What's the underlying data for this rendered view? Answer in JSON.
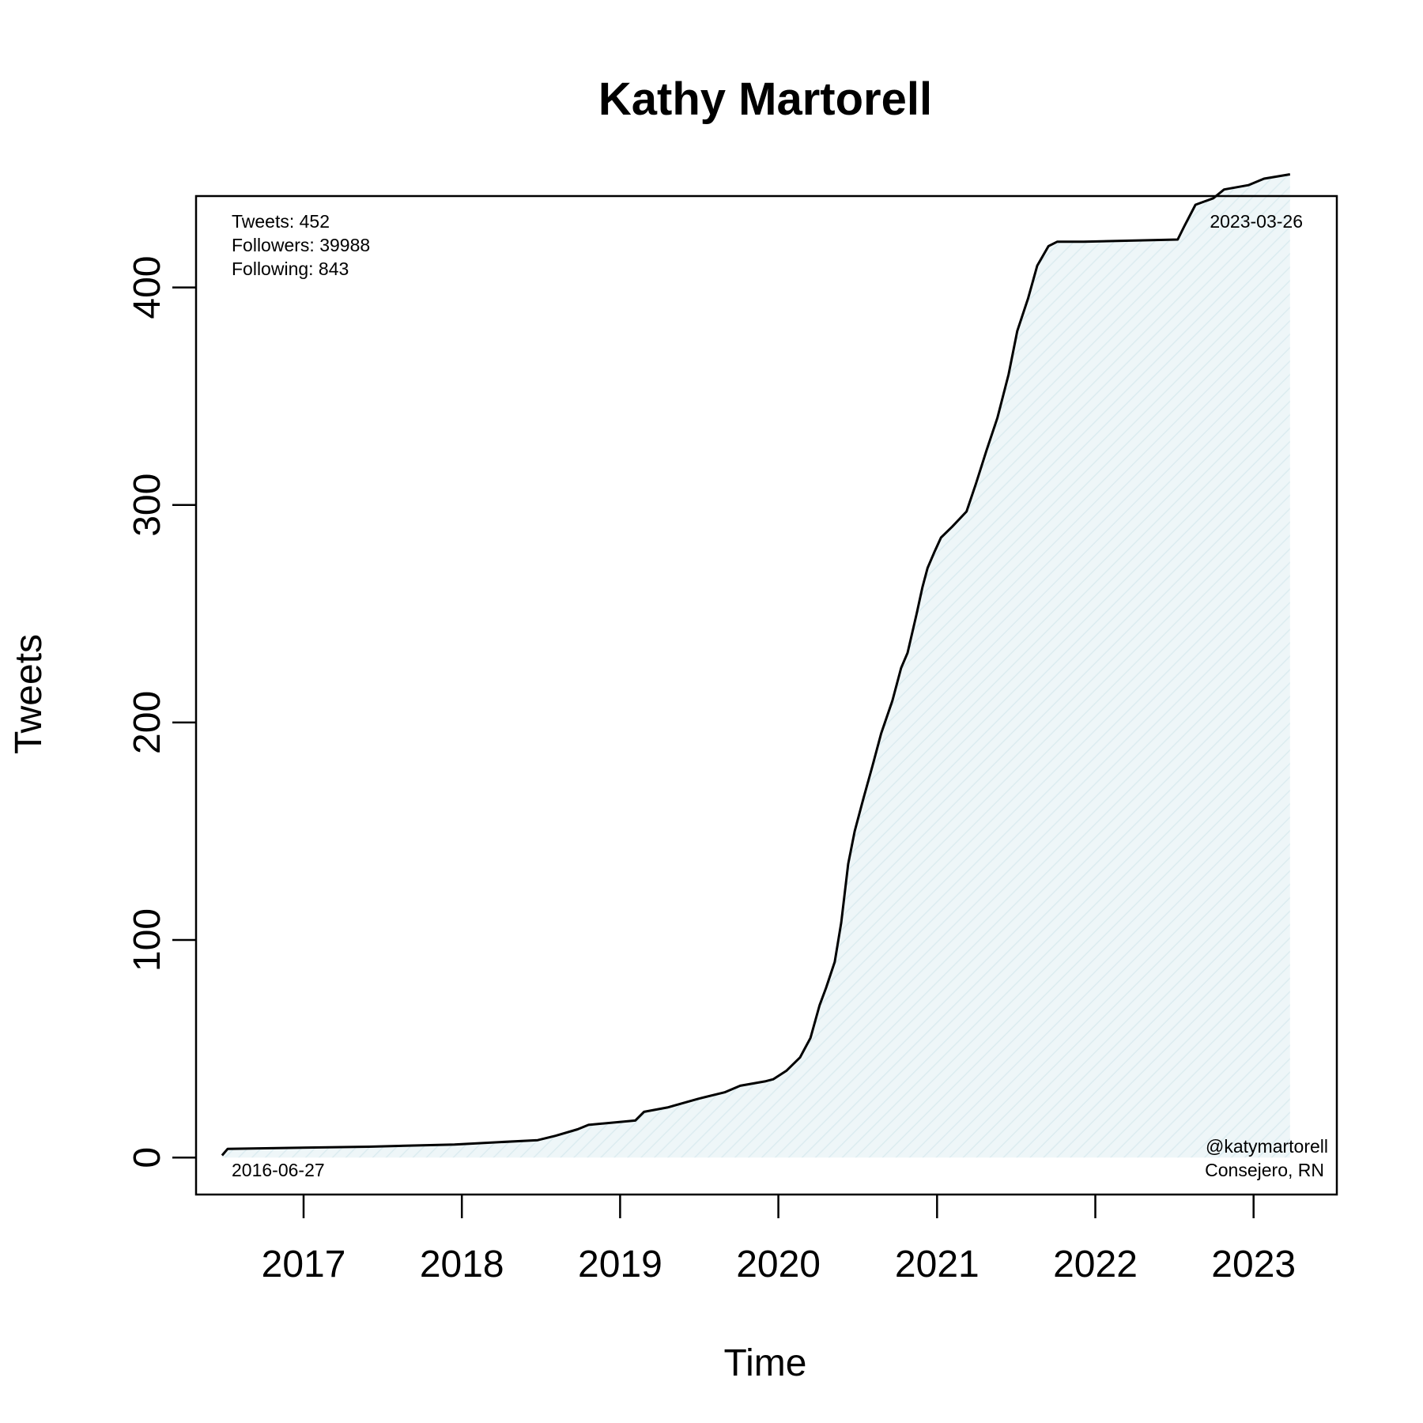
{
  "chart_data": {
    "type": "area",
    "title": "Kathy Martorell",
    "xlabel": "Time",
    "ylabel": "Tweets",
    "x_ticks": [
      "2017",
      "2018",
      "2019",
      "2020",
      "2021",
      "2022",
      "2023"
    ],
    "y_ticks": [
      0,
      100,
      200,
      300,
      400
    ],
    "xlim": [
      "2016-04-28",
      "2023-07-12"
    ],
    "ylim": [
      -17,
      442
    ],
    "grid": false,
    "fill_color": "#e6f2f5",
    "line_color": "#000000",
    "annotations": {
      "stats": [
        "Tweets: 452",
        "Followers: 39988",
        "Following: 843"
      ],
      "start_date": "2016-06-27",
      "end_date": "2023-03-26",
      "handle": "@katymartorell",
      "description": "Consejero, RN"
    },
    "series": [
      {
        "x": [
          "2016-06-27",
          "2016-07-10",
          "2017-06-01",
          "2017-12-15",
          "2018-06-25",
          "2018-08-05",
          "2018-09-25",
          "2018-10-20",
          "2019-02-05",
          "2019-02-25",
          "2019-04-20",
          "2019-06-30",
          "2019-08-30",
          "2019-10-05",
          "2019-12-01",
          "2019-12-20",
          "2020-01-20",
          "2020-02-20",
          "2020-03-15",
          "2020-04-05",
          "2020-04-20",
          "2020-05-10",
          "2020-05-25",
          "2020-06-10",
          "2020-06-25",
          "2020-07-15",
          "2020-08-05",
          "2020-08-25",
          "2020-09-20",
          "2020-10-10",
          "2020-10-25",
          "2020-11-15",
          "2020-11-28",
          "2020-12-10",
          "2020-12-25",
          "2021-01-10",
          "2021-02-05",
          "2021-03-10",
          "2021-04-01",
          "2021-04-25",
          "2021-05-20",
          "2021-06-15",
          "2021-07-05",
          "2021-07-30",
          "2021-08-20",
          "2021-09-15",
          "2021-10-05",
          "2021-10-25",
          "2021-11-20",
          "2021-12-05",
          "2022-07-10",
          "2022-07-25",
          "2022-08-20",
          "2022-09-30",
          "2022-10-25",
          "2022-12-20",
          "2023-01-25",
          "2023-03-26"
        ],
        "y": [
          1,
          4,
          5,
          6,
          8,
          10,
          13,
          15,
          17,
          21,
          23,
          27,
          30,
          33,
          35,
          36,
          40,
          46,
          55,
          70,
          78,
          90,
          108,
          135,
          150,
          165,
          180,
          195,
          210,
          225,
          232,
          250,
          262,
          271,
          278,
          285,
          290,
          297,
          310,
          325,
          340,
          360,
          380,
          395,
          410,
          419,
          421,
          421,
          421,
          421,
          422,
          428,
          438,
          441,
          445,
          447,
          450,
          452
        ]
      }
    ]
  }
}
